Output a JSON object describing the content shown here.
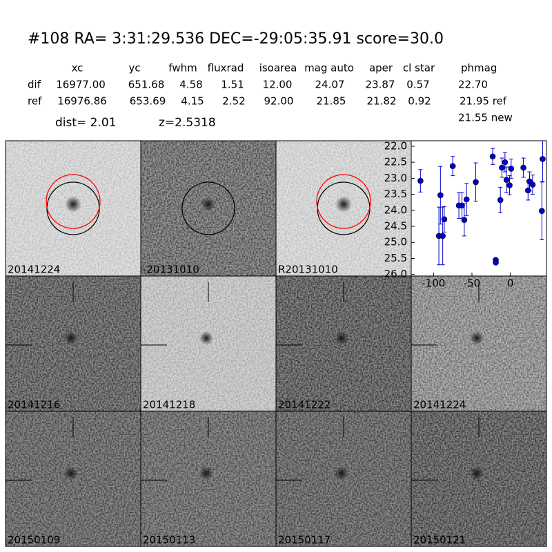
{
  "header": {
    "title": "#108   RA= 3:31:29.536 DEC=-29:05:35.91      score=30.0"
  },
  "table": {
    "columns": [
      "xc",
      "yc",
      "fwhm",
      "fluxrad",
      "isoarea",
      "mag auto",
      "aper",
      "cl star",
      "phmag"
    ],
    "rows": [
      [
        "dif",
        "16977.00",
        "651.68",
        "4.58",
        "1.51",
        "12.00",
        "24.07",
        "23.87",
        "0.57",
        "22.70"
      ],
      [
        "ref",
        "16976.86",
        "653.69",
        "4.15",
        "2.52",
        "92.00",
        "21.85",
        "21.82",
        "0.92",
        "21.95 ref"
      ]
    ],
    "extra": "21.55 new"
  },
  "dist": "dist=  2.01",
  "redshift": "z=2.5318",
  "panels": [
    {
      "label": "20141224"
    },
    {
      "label": "-20131010"
    },
    {
      "label": "R20131010"
    },
    {
      "label": "20141216"
    },
    {
      "label": "20141218"
    },
    {
      "label": "20141222"
    },
    {
      "label": "20141224",
      "color": "#ff0000"
    },
    {
      "label": "20150109"
    },
    {
      "label": "20150113"
    },
    {
      "label": "20150117"
    },
    {
      "label": "20150121"
    }
  ],
  "chart_data": {
    "type": "scatter",
    "xlim": [
      -129,
      47
    ],
    "ylim": [
      26.05,
      21.83
    ],
    "xticks": [
      -100,
      -50,
      0
    ],
    "yticks": [
      {
        "value": 22,
        "label": "22.0"
      },
      22.5,
      {
        "value": 23,
        "label": "23.0"
      },
      23.5,
      {
        "value": 24,
        "label": "24.0"
      },
      24.5,
      {
        "value": 25,
        "label": "25.0"
      },
      25.5,
      {
        "value": 26,
        "label": "26.0"
      }
    ],
    "series": [
      {
        "color": "#0000cc",
        "x": [
          -117,
          -93,
          -91,
          -88,
          -86,
          -75,
          -67,
          -63,
          -60,
          -57,
          -45,
          -23,
          -19,
          -19,
          -13,
          -11,
          -7,
          -5,
          -1,
          1,
          17,
          23,
          25,
          29,
          41,
          42
        ],
        "values": [
          23.08,
          24.8,
          23.53,
          24.8,
          24.28,
          22.62,
          23.85,
          23.85,
          24.3,
          23.66,
          23.12,
          22.32,
          25.55,
          25.63,
          23.68,
          22.67,
          22.5,
          23.05,
          23.22,
          22.7,
          22.67,
          23.38,
          23.1,
          23.2,
          24.02,
          22.4
        ],
        "errors": [
          0.35,
          0.9,
          0.9,
          0.9,
          0.4,
          0.3,
          0.4,
          0.4,
          0.5,
          0.5,
          0.6,
          0.25,
          0.05,
          0.05,
          0.4,
          0.3,
          0.3,
          0.4,
          0.3,
          0.3,
          0.3,
          0.3,
          0.3,
          0.3,
          0.9,
          0.7
        ]
      }
    ]
  }
}
